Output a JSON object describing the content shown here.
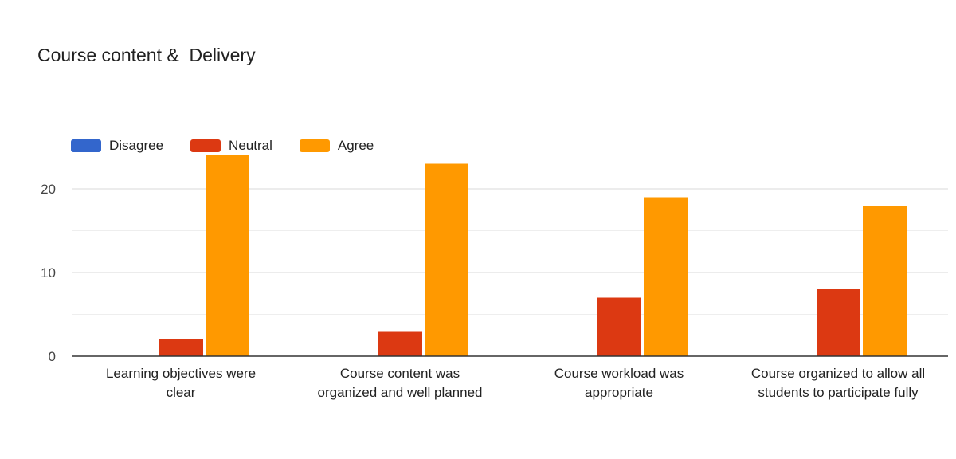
{
  "chart_data": {
    "type": "bar",
    "title": "Course content &  Delivery",
    "xlabel": "",
    "ylabel": "",
    "ylim": [
      0,
      25
    ],
    "yticks": [
      0,
      10,
      20
    ],
    "grid": true,
    "legend_position": "top-left",
    "categories": [
      [
        "Learning objectives were",
        "clear"
      ],
      [
        "Course content was",
        "organized and well planned"
      ],
      [
        "Course workload was",
        "appropriate"
      ],
      [
        "Course organized to allow all",
        "students to participate fully"
      ]
    ],
    "series": [
      {
        "name": "Disagree",
        "color": "#3366cc",
        "values": [
          0,
          0,
          0,
          0
        ]
      },
      {
        "name": "Neutral",
        "color": "#dc3912",
        "values": [
          2,
          3,
          7,
          8
        ]
      },
      {
        "name": "Agree",
        "color": "#ff9900",
        "values": [
          24,
          23,
          19,
          18
        ]
      }
    ]
  }
}
